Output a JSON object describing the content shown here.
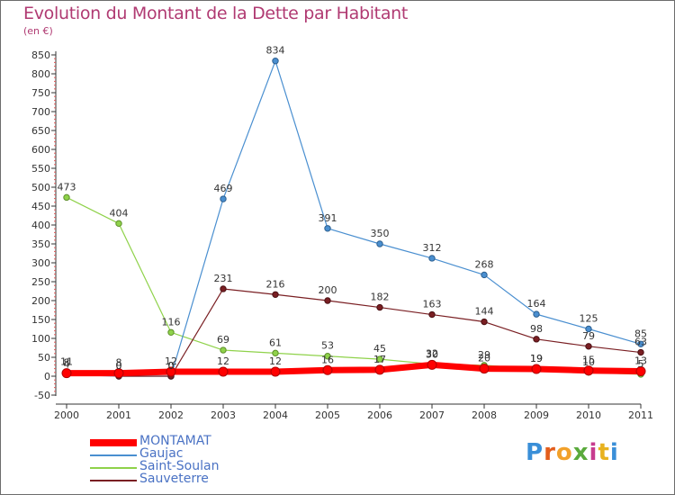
{
  "chart_data": {
    "type": "line",
    "title": "Evolution du Montant de la Dette par Habitant",
    "subtitle": "(en €)",
    "xlabel": "",
    "ylabel": "",
    "ylim": [
      -50,
      850
    ],
    "yticks": [
      -50,
      0,
      50,
      100,
      150,
      200,
      250,
      300,
      350,
      400,
      450,
      500,
      550,
      600,
      650,
      700,
      750,
      800,
      850
    ],
    "categories": [
      "2000",
      "2001",
      "2002",
      "2003",
      "2004",
      "2005",
      "2006",
      "2007",
      "2008",
      "2009",
      "2010",
      "2011"
    ],
    "grid": false,
    "series": [
      {
        "name": "MONTAMAT",
        "color": "#ff0000",
        "values": [
          8,
          8,
          12,
          12,
          12,
          16,
          17,
          30,
          20,
          19,
          15,
          13
        ]
      },
      {
        "name": "Gaujac",
        "color": "#4a8fd0",
        "values": [
          4,
          0,
          0,
          469,
          834,
          391,
          350,
          312,
          268,
          164,
          125,
          85
        ]
      },
      {
        "name": "Saint-Soulan",
        "color": "#8fd24a",
        "values": [
          473,
          404,
          116,
          69,
          61,
          53,
          45,
          32,
          29,
          19,
          10,
          5
        ]
      },
      {
        "name": "Sauveterre",
        "color": "#7a1f23",
        "values": [
          11,
          0,
          0,
          231,
          216,
          200,
          182,
          163,
          144,
          98,
          79,
          63
        ]
      }
    ],
    "legend": [
      "MONTAMAT",
      "Gaujac",
      "Saint-Soulan",
      "Sauveterre"
    ],
    "legend_position": "bottom-left"
  },
  "branding": {
    "logo_text": "Proxiti"
  }
}
